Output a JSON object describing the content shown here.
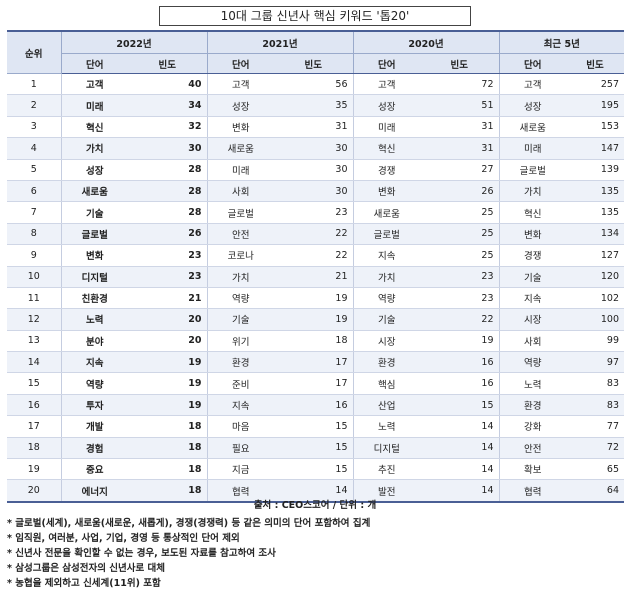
{
  "title": "10대 그룹 신년사 핵심 키워드 '톱20'",
  "headers": {
    "rank": "순위",
    "groups": [
      "2022년",
      "2021년",
      "2020년",
      "최근 5년"
    ],
    "word": "단어",
    "freq": "빈도"
  },
  "rows": [
    {
      "rank": "1",
      "y2022": [
        "고객",
        "40"
      ],
      "y2021": [
        "고객",
        "56"
      ],
      "y2020": [
        "고객",
        "72"
      ],
      "y5": [
        "고객",
        "257"
      ]
    },
    {
      "rank": "2",
      "y2022": [
        "미래",
        "34"
      ],
      "y2021": [
        "성장",
        "35"
      ],
      "y2020": [
        "성장",
        "51"
      ],
      "y5": [
        "성장",
        "195"
      ]
    },
    {
      "rank": "3",
      "y2022": [
        "혁신",
        "32"
      ],
      "y2021": [
        "변화",
        "31"
      ],
      "y2020": [
        "미래",
        "31"
      ],
      "y5": [
        "새로움",
        "153"
      ]
    },
    {
      "rank": "4",
      "y2022": [
        "가치",
        "30"
      ],
      "y2021": [
        "새로움",
        "30"
      ],
      "y2020": [
        "혁신",
        "31"
      ],
      "y5": [
        "미래",
        "147"
      ]
    },
    {
      "rank": "5",
      "y2022": [
        "성장",
        "28"
      ],
      "y2021": [
        "미래",
        "30"
      ],
      "y2020": [
        "경쟁",
        "27"
      ],
      "y5": [
        "글로벌",
        "139"
      ]
    },
    {
      "rank": "6",
      "y2022": [
        "새로움",
        "28"
      ],
      "y2021": [
        "사회",
        "30"
      ],
      "y2020": [
        "변화",
        "26"
      ],
      "y5": [
        "가치",
        "135"
      ]
    },
    {
      "rank": "7",
      "y2022": [
        "기술",
        "28"
      ],
      "y2021": [
        "글로벌",
        "23"
      ],
      "y2020": [
        "새로움",
        "25"
      ],
      "y5": [
        "혁신",
        "135"
      ]
    },
    {
      "rank": "8",
      "y2022": [
        "글로벌",
        "26"
      ],
      "y2021": [
        "안전",
        "22"
      ],
      "y2020": [
        "글로벌",
        "25"
      ],
      "y5": [
        "변화",
        "134"
      ]
    },
    {
      "rank": "9",
      "y2022": [
        "변화",
        "23"
      ],
      "y2021": [
        "코로나",
        "22"
      ],
      "y2020": [
        "지속",
        "25"
      ],
      "y5": [
        "경쟁",
        "127"
      ]
    },
    {
      "rank": "10",
      "y2022": [
        "디지털",
        "23"
      ],
      "y2021": [
        "가치",
        "21"
      ],
      "y2020": [
        "가치",
        "23"
      ],
      "y5": [
        "기술",
        "120"
      ]
    },
    {
      "rank": "11",
      "y2022": [
        "친환경",
        "21"
      ],
      "y2021": [
        "역량",
        "19"
      ],
      "y2020": [
        "역량",
        "23"
      ],
      "y5": [
        "지속",
        "102"
      ]
    },
    {
      "rank": "12",
      "y2022": [
        "노력",
        "20"
      ],
      "y2021": [
        "기술",
        "19"
      ],
      "y2020": [
        "기술",
        "22"
      ],
      "y5": [
        "시장",
        "100"
      ]
    },
    {
      "rank": "13",
      "y2022": [
        "분야",
        "20"
      ],
      "y2021": [
        "위기",
        "18"
      ],
      "y2020": [
        "시장",
        "19"
      ],
      "y5": [
        "사회",
        "99"
      ]
    },
    {
      "rank": "14",
      "y2022": [
        "지속",
        "19"
      ],
      "y2021": [
        "환경",
        "17"
      ],
      "y2020": [
        "환경",
        "16"
      ],
      "y5": [
        "역량",
        "97"
      ]
    },
    {
      "rank": "15",
      "y2022": [
        "역량",
        "19"
      ],
      "y2021": [
        "준비",
        "17"
      ],
      "y2020": [
        "핵심",
        "16"
      ],
      "y5": [
        "노력",
        "83"
      ]
    },
    {
      "rank": "16",
      "y2022": [
        "투자",
        "19"
      ],
      "y2021": [
        "지속",
        "16"
      ],
      "y2020": [
        "산업",
        "15"
      ],
      "y5": [
        "환경",
        "83"
      ]
    },
    {
      "rank": "17",
      "y2022": [
        "개발",
        "18"
      ],
      "y2021": [
        "마음",
        "15"
      ],
      "y2020": [
        "노력",
        "14"
      ],
      "y5": [
        "강화",
        "77"
      ]
    },
    {
      "rank": "18",
      "y2022": [
        "경험",
        "18"
      ],
      "y2021": [
        "필요",
        "15"
      ],
      "y2020": [
        "디지털",
        "14"
      ],
      "y5": [
        "안전",
        "72"
      ]
    },
    {
      "rank": "19",
      "y2022": [
        "중요",
        "18"
      ],
      "y2021": [
        "지금",
        "15"
      ],
      "y2020": [
        "추진",
        "14"
      ],
      "y5": [
        "확보",
        "65"
      ]
    },
    {
      "rank": "20",
      "y2022": [
        "에너지",
        "18"
      ],
      "y2021": [
        "협력",
        "14"
      ],
      "y2020": [
        "발전",
        "14"
      ],
      "y5": [
        "협력",
        "64"
      ]
    }
  ],
  "source": "출처 : CEO스코어 / 단위 : 개",
  "notes": [
    "* 글로벌(세계), 새로움(새로운, 새롭게), 경쟁(경쟁력) 등 같은 의미의 단어 포함하여 집계",
    "* 임직원, 여러분, 사업, 기업, 경영 등 통상적인 단어 제외",
    "* 신년사 전문을 확인할 수 없는 경우, 보도된 자료를 참고하여 조사",
    "* 삼성그룹은 삼성전자의 신년사로 대체",
    "* 농협을 제외하고 신세계(11위) 포함"
  ]
}
